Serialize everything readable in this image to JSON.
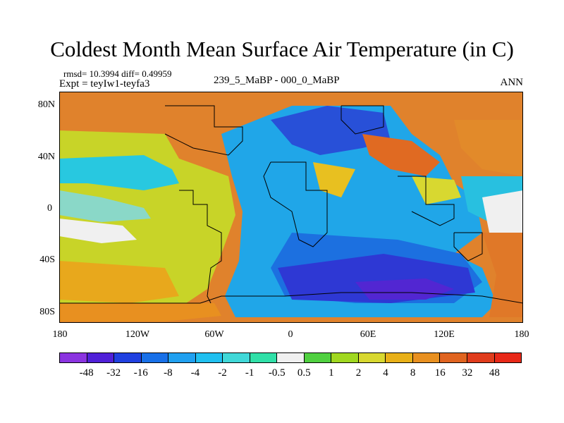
{
  "title": "Coldest Month Mean Surface Air Temperature (in C)",
  "stats_line": "rmsd= 10.3994 diff= 0.49959",
  "experiment_line": "Expt = teyIw1-teyfa3",
  "case_label": "239_5_MaBP - 000_0_MaBP",
  "season_label": "ANN",
  "map": {
    "lat_labels": [
      "80N",
      "40N",
      "0",
      "40S",
      "80S"
    ],
    "lon_labels": [
      "180",
      "120W",
      "60W",
      "0",
      "60E",
      "120E",
      "180"
    ]
  },
  "colorbar": {
    "labels": [
      "-48",
      "-32",
      "-16",
      "-8",
      "-4",
      "-2",
      "-1",
      "-0.5",
      "0.5",
      "1",
      "2",
      "4",
      "8",
      "16",
      "32",
      "48"
    ],
    "colors": [
      "#8b34e0",
      "#5020d8",
      "#2040e0",
      "#1870e8",
      "#20a0f0",
      "#20c0f0",
      "#40d8d8",
      "#30e0a8",
      "#f0f0f0",
      "#50d040",
      "#a0d820",
      "#d8d830",
      "#e8b018",
      "#e89020",
      "#e06420",
      "#e03c1c",
      "#e82818"
    ]
  },
  "palette": {
    "ocean_warm": "#c8d428",
    "ocean_cool": "#28c8e0",
    "deep_cold": "#2838d8",
    "land_hot": "#e07d2c"
  }
}
